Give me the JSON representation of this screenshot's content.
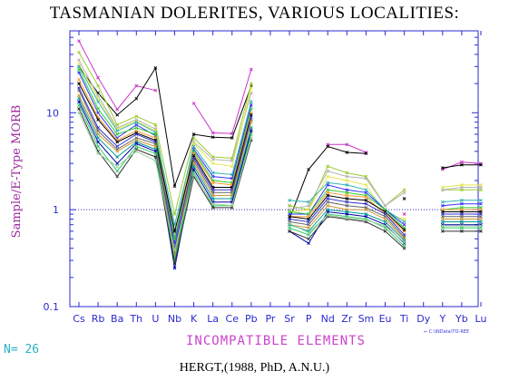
{
  "header": {
    "title": "TASMANIAN DOLERITES, VARIOUS LOCALITIES:"
  },
  "footer": {
    "credit": "HERGT,(1988, PhD, A.N.U.)",
    "count": "N= 26",
    "source_tag": "⇐ C:\\iNData\\TO-REE"
  },
  "chart_data": {
    "type": "line",
    "title": "TASMANIAN DOLERITES, VARIOUS LOCALITIES:",
    "xlabel": "INCOMPATIBLE ELEMENTS",
    "ylabel": "Sample/E-Type MORB",
    "yscale": "log",
    "ylim": [
      0.1,
      70
    ],
    "yticks": [
      "0.1",
      "1",
      "10"
    ],
    "reference_line": 1,
    "grid": false,
    "categories": [
      "Cs",
      "Rb",
      "Ba",
      "Th",
      "U",
      "Nb",
      "K",
      "La",
      "Ce",
      "Pb",
      "Pr",
      "Sr",
      "P",
      "Nd",
      "Zr",
      "Sm",
      "Eu",
      "Ti",
      "Dy",
      "Y",
      "Yb",
      "Lu"
    ],
    "series": [
      {
        "color": "#cc33cc",
        "values": [
          55,
          23,
          10.8,
          19,
          17,
          null,
          12.5,
          6.2,
          6.1,
          28,
          null,
          1.1,
          null,
          4.7,
          4.7,
          3.9,
          null,
          0.9,
          null,
          2.6,
          3.1,
          3.0
        ]
      },
      {
        "color": "#000000",
        "values": [
          30,
          16,
          9.5,
          14,
          29,
          1.75,
          6,
          5.6,
          5.5,
          19,
          null,
          0.8,
          2.6,
          4.5,
          3.9,
          3.8,
          null,
          1.3,
          null,
          2.7,
          2.9,
          2.9
        ]
      },
      {
        "color": "#9bcc33",
        "values": [
          42,
          19,
          7.5,
          9.2,
          7.5,
          0.9,
          5.5,
          3.5,
          3.4,
          20,
          null,
          1.1,
          1.0,
          2.8,
          2.4,
          2.2,
          1.1,
          1.6,
          null,
          1.6,
          1.6,
          1.6
        ]
      },
      {
        "color": "#b3b3b3",
        "values": [
          35,
          15,
          7,
          8.5,
          6.8,
          0.55,
          5,
          3.3,
          3.2,
          16,
          null,
          1.0,
          1.1,
          2.5,
          2.2,
          2.1,
          1.1,
          1.5,
          null,
          1.6,
          1.7,
          1.7
        ]
      },
      {
        "color": "#e6e64d",
        "values": [
          32,
          14,
          6.8,
          8.2,
          6.5,
          0.5,
          4.8,
          3.0,
          2.8,
          18,
          null,
          0.95,
          1.0,
          2.2,
          2.0,
          1.8,
          0.9,
          0.8,
          null,
          1.7,
          1.8,
          1.8
        ]
      },
      {
        "color": "#33b3b3",
        "values": [
          30,
          13,
          6.5,
          8,
          6.3,
          0.7,
          4.5,
          2.4,
          2.3,
          13,
          null,
          1.25,
          1.2,
          1.9,
          1.8,
          1.6,
          1.0,
          0.75,
          null,
          1.2,
          1.25,
          1.25
        ]
      },
      {
        "color": "#3333ff",
        "values": [
          26,
          10,
          5.5,
          7.5,
          5.8,
          0.45,
          4.2,
          2.2,
          2.1,
          12,
          null,
          0.9,
          0.9,
          1.8,
          1.6,
          1.5,
          1.0,
          0.7,
          null,
          1.1,
          1.15,
          1.15
        ]
      },
      {
        "color": "#33cc33",
        "values": [
          28,
          11,
          6,
          7,
          6,
          0.5,
          4,
          2.0,
          1.9,
          11,
          null,
          0.95,
          0.9,
          1.6,
          1.5,
          1.4,
          1.0,
          0.65,
          null,
          1.0,
          1.05,
          1.05
        ]
      },
      {
        "color": "#ff9933",
        "values": [
          22,
          9,
          5.2,
          6.5,
          5.5,
          0.4,
          3.8,
          1.9,
          1.8,
          10,
          null,
          0.85,
          0.85,
          1.5,
          1.4,
          1.35,
          0.9,
          0.6,
          null,
          1.0,
          1.0,
          1.0
        ]
      },
      {
        "color": "#000000",
        "values": [
          20,
          8.5,
          5,
          6.2,
          5.2,
          0.6,
          3.6,
          1.7,
          1.7,
          9.5,
          null,
          0.85,
          0.8,
          1.4,
          1.3,
          1.25,
          0.95,
          0.62,
          null,
          0.95,
          0.95,
          0.95
        ]
      },
      {
        "color": "#3333cc",
        "values": [
          18,
          7,
          4.5,
          6,
          5,
          0.4,
          3.4,
          1.6,
          1.6,
          9,
          null,
          0.8,
          0.75,
          1.3,
          1.2,
          1.15,
          0.9,
          0.55,
          null,
          0.9,
          0.9,
          0.9
        ]
      },
      {
        "color": "#666666",
        "values": [
          17,
          6.5,
          4.2,
          5.5,
          4.8,
          0.35,
          3.2,
          1.5,
          1.5,
          8.5,
          null,
          0.75,
          0.7,
          1.2,
          1.1,
          1.05,
          0.85,
          0.52,
          null,
          0.85,
          0.85,
          0.85
        ]
      },
      {
        "color": "#cc9933",
        "values": [
          15,
          6,
          4,
          5.2,
          4.5,
          0.33,
          3,
          1.4,
          1.4,
          8,
          null,
          0.7,
          0.65,
          1.1,
          1.0,
          1.0,
          0.8,
          0.5,
          null,
          0.8,
          0.8,
          0.8
        ]
      },
      {
        "color": "#009999",
        "values": [
          14,
          5.5,
          3.5,
          5,
          4.2,
          0.3,
          2.8,
          1.3,
          1.3,
          7,
          null,
          0.7,
          0.6,
          1.0,
          0.95,
          0.9,
          0.75,
          0.48,
          null,
          0.75,
          0.75,
          0.75
        ]
      },
      {
        "color": "#0000aa",
        "values": [
          13,
          5,
          3,
          4.8,
          4,
          0.25,
          2.6,
          1.2,
          1.2,
          6.5,
          null,
          0.6,
          0.45,
          0.95,
          0.9,
          0.85,
          0.7,
          0.45,
          null,
          0.7,
          0.7,
          0.7
        ]
      },
      {
        "color": "#33cc66",
        "values": [
          12,
          4.5,
          2.5,
          4.5,
          3.8,
          0.3,
          2.4,
          1.1,
          1.1,
          6,
          null,
          0.65,
          0.55,
          0.9,
          0.85,
          0.8,
          0.65,
          0.42,
          null,
          0.65,
          0.65,
          0.65
        ]
      },
      {
        "color": "#333333",
        "values": [
          11,
          4,
          2.2,
          4.2,
          3.5,
          0.28,
          2.2,
          1.05,
          1.05,
          5.2,
          null,
          0.6,
          0.5,
          0.85,
          0.8,
          0.75,
          0.6,
          0.4,
          null,
          0.6,
          0.6,
          0.6
        ]
      },
      {
        "color": "#99cc99",
        "values": [
          10,
          3.8,
          2.8,
          4,
          3.2,
          0.38,
          2.3,
          1.15,
          1.1,
          5.5,
          null,
          0.72,
          0.58,
          0.88,
          0.82,
          0.78,
          0.68,
          0.46,
          null,
          0.68,
          0.68,
          0.68
        ]
      }
    ]
  }
}
